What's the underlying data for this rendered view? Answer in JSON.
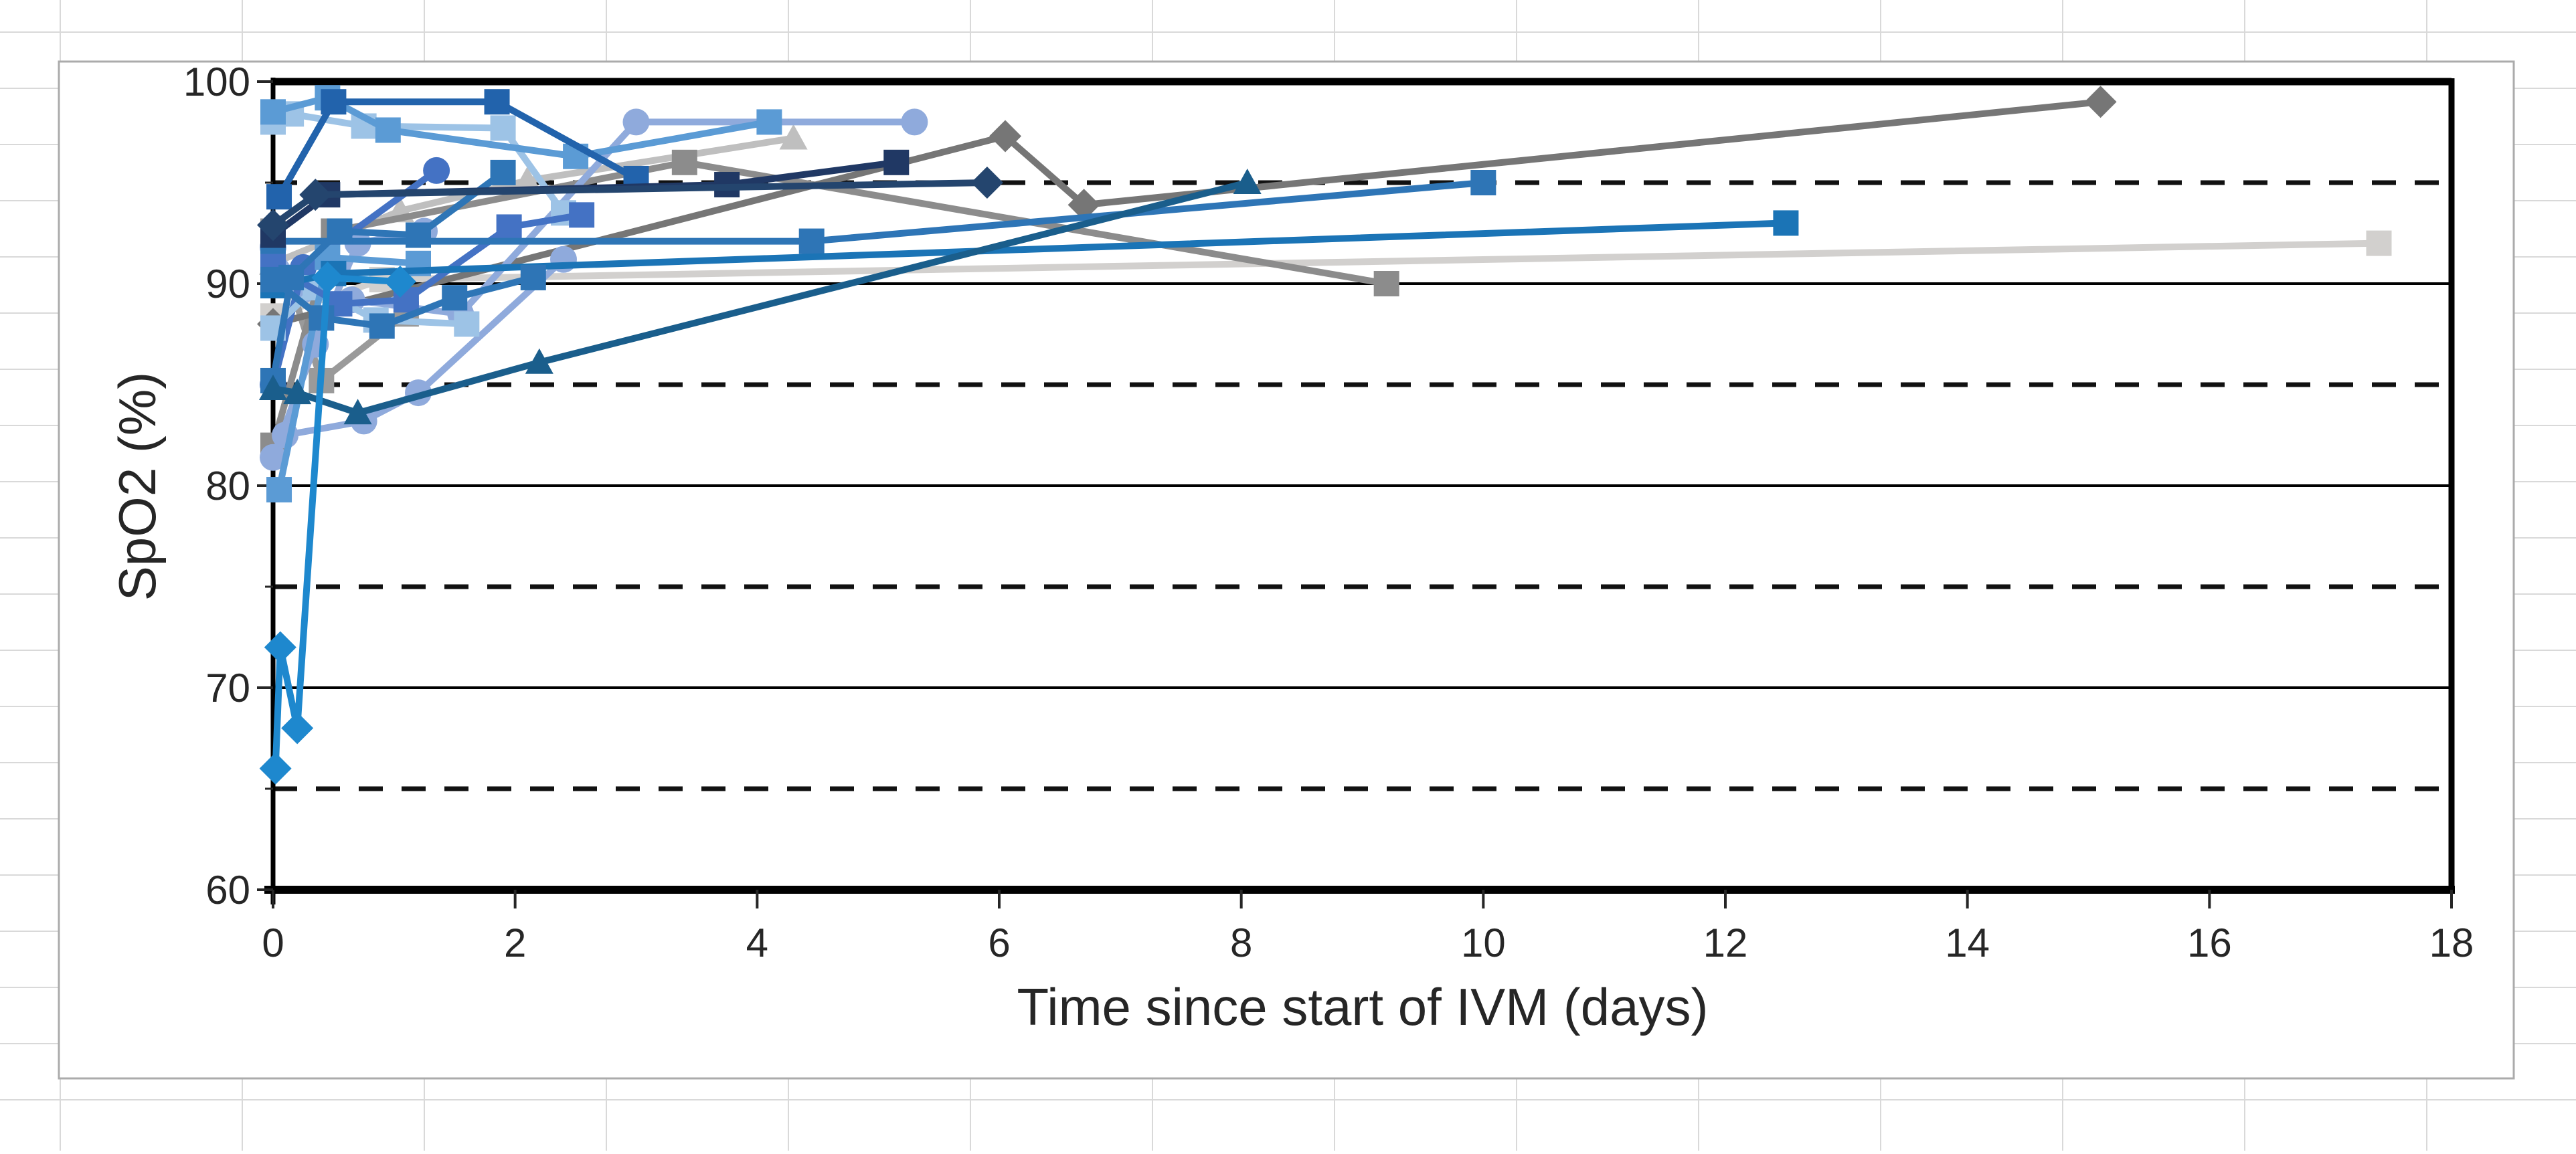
{
  "chart_data": {
    "type": "line",
    "title": "",
    "xlabel": "Time since start of IVM (days)",
    "ylabel": "SpO2 (%)",
    "xlim": [
      0,
      18
    ],
    "ylim": [
      60,
      100
    ],
    "x_ticks": [
      0,
      2,
      4,
      6,
      8,
      10,
      12,
      14,
      16,
      18
    ],
    "y_ticks": [
      60,
      70,
      80,
      90,
      100
    ],
    "y_minor_gridlines": [
      65,
      75,
      85,
      95
    ],
    "grid": "horizontal major solid, horizontal minor dashed",
    "legend_position": "none",
    "series": [
      {
        "marker": "square",
        "color": "#D2D0CE",
        "points": [
          [
            0,
            88.4
          ],
          [
            0.9,
            90.2
          ],
          [
            17.4,
            92
          ]
        ]
      },
      {
        "marker": "triangle",
        "color": "#BFBFBF",
        "points": [
          [
            0,
            91
          ],
          [
            1.05,
            93.6
          ],
          [
            2.1,
            95.1
          ],
          [
            4.3,
            97.2
          ]
        ]
      },
      {
        "marker": "square",
        "color": "#9A9A9A",
        "points": [
          [
            0,
            92.6
          ],
          [
            0.4,
            85.2
          ],
          [
            1.1,
            88.5
          ]
        ]
      },
      {
        "marker": "square",
        "color": "#8C8C8C",
        "points": [
          [
            0,
            82
          ],
          [
            0.5,
            92.6
          ],
          [
            3.4,
            96
          ],
          [
            9.2,
            90
          ]
        ]
      },
      {
        "marker": "diamond",
        "color": "#767676",
        "points": [
          [
            0,
            88
          ],
          [
            6.05,
            97.3
          ],
          [
            6.7,
            93.9
          ],
          [
            15.1,
            99
          ]
        ]
      },
      {
        "marker": "circle",
        "color": "#8FAADC",
        "points": [
          [
            0,
            81.4
          ],
          [
            0.35,
            87
          ],
          [
            0.7,
            92
          ],
          [
            1.25,
            92.6
          ]
        ]
      },
      {
        "marker": "circle",
        "color": "#8FAADC",
        "points": [
          [
            0.1,
            82.5
          ],
          [
            0.75,
            83.2
          ],
          [
            1.2,
            84.6
          ],
          [
            2.4,
            91.2
          ]
        ]
      },
      {
        "marker": "circle",
        "color": "#8FAADC",
        "points": [
          [
            0,
            91.8
          ],
          [
            0.25,
            89.7
          ],
          [
            0.65,
            89.2
          ],
          [
            1.55,
            88.5
          ],
          [
            3.0,
            98
          ],
          [
            5.3,
            98
          ]
        ]
      },
      {
        "marker": "circle",
        "color": "#4472C4",
        "points": [
          [
            0,
            85
          ],
          [
            0.25,
            90.8
          ],
          [
            1.35,
            95.6
          ]
        ]
      },
      {
        "marker": "square",
        "color": "#9DC3E6",
        "points": [
          [
            0,
            98.0
          ],
          [
            0.15,
            98.4
          ],
          [
            0.75,
            97.8
          ],
          [
            1.9,
            97.7
          ],
          [
            2.4,
            93.5
          ]
        ]
      },
      {
        "marker": "square",
        "color": "#9DC3E6",
        "points": [
          [
            0,
            87.8
          ],
          [
            0.35,
            89.8
          ],
          [
            0.85,
            88.2
          ],
          [
            1.6,
            88
          ]
        ]
      },
      {
        "marker": "square",
        "color": "#5B9BD5",
        "points": [
          [
            0,
            98.5
          ],
          [
            0.45,
            99.2
          ],
          [
            0.95,
            97.6
          ],
          [
            2.5,
            96.3
          ],
          [
            4.1,
            98
          ]
        ]
      },
      {
        "marker": "square",
        "color": "#5B9BD5",
        "points": [
          [
            0.05,
            79.8
          ],
          [
            0.45,
            91.3
          ],
          [
            1.2,
            91
          ]
        ]
      },
      {
        "marker": "square",
        "color": "#4472C4",
        "points": [
          [
            0,
            90.9
          ],
          [
            0.55,
            89
          ],
          [
            1.1,
            89.2
          ],
          [
            1.95,
            92.8
          ],
          [
            2.55,
            93.4
          ]
        ]
      },
      {
        "marker": "square",
        "color": "#2E75B6",
        "points": [
          [
            0,
            92.1
          ],
          [
            4.45,
            92.1
          ],
          [
            10,
            95
          ]
        ]
      },
      {
        "marker": "square",
        "color": "#1B74B6",
        "points": [
          [
            0,
            89.9
          ],
          [
            0.5,
            90.5
          ],
          [
            12.5,
            93
          ]
        ]
      },
      {
        "marker": "square",
        "color": "#2E75B6",
        "points": [
          [
            0,
            90.2
          ],
          [
            0.4,
            88.3
          ],
          [
            0.9,
            87.9
          ],
          [
            1.5,
            89.3
          ],
          [
            2.15,
            90.3
          ]
        ]
      },
      {
        "marker": "square",
        "color": "#2E75B6",
        "points": [
          [
            0,
            85.2
          ],
          [
            0.15,
            90.3
          ],
          [
            0.55,
            92.6
          ],
          [
            1.2,
            92.4
          ],
          [
            1.9,
            95.5
          ]
        ]
      },
      {
        "marker": "square",
        "color": "#2263AC",
        "points": [
          [
            0.05,
            94.3
          ],
          [
            0.5,
            99
          ],
          [
            1.85,
            99
          ],
          [
            3.0,
            95.2
          ]
        ]
      },
      {
        "marker": "square",
        "color": "#203864",
        "points": [
          [
            0,
            92.4
          ],
          [
            0.45,
            94.4
          ],
          [
            3.75,
            94.9
          ],
          [
            5.15,
            96
          ]
        ]
      },
      {
        "marker": "diamond",
        "color": "#24456E",
        "points": [
          [
            0,
            92.9
          ],
          [
            0.35,
            94.4
          ],
          [
            5.9,
            95
          ]
        ]
      },
      {
        "marker": "triangle",
        "color": "#1A5E8C",
        "points": [
          [
            0,
            84.8
          ],
          [
            0.2,
            84.6
          ],
          [
            0.7,
            83.6
          ],
          [
            2.2,
            86.1
          ],
          [
            8.05,
            95
          ]
        ]
      },
      {
        "marker": "diamond",
        "color": "#1E88CE",
        "points": [
          [
            0.02,
            66
          ],
          [
            0.06,
            72
          ],
          [
            0.2,
            68
          ],
          [
            0.45,
            90.3
          ],
          [
            1.05,
            90.1
          ]
        ]
      }
    ]
  }
}
